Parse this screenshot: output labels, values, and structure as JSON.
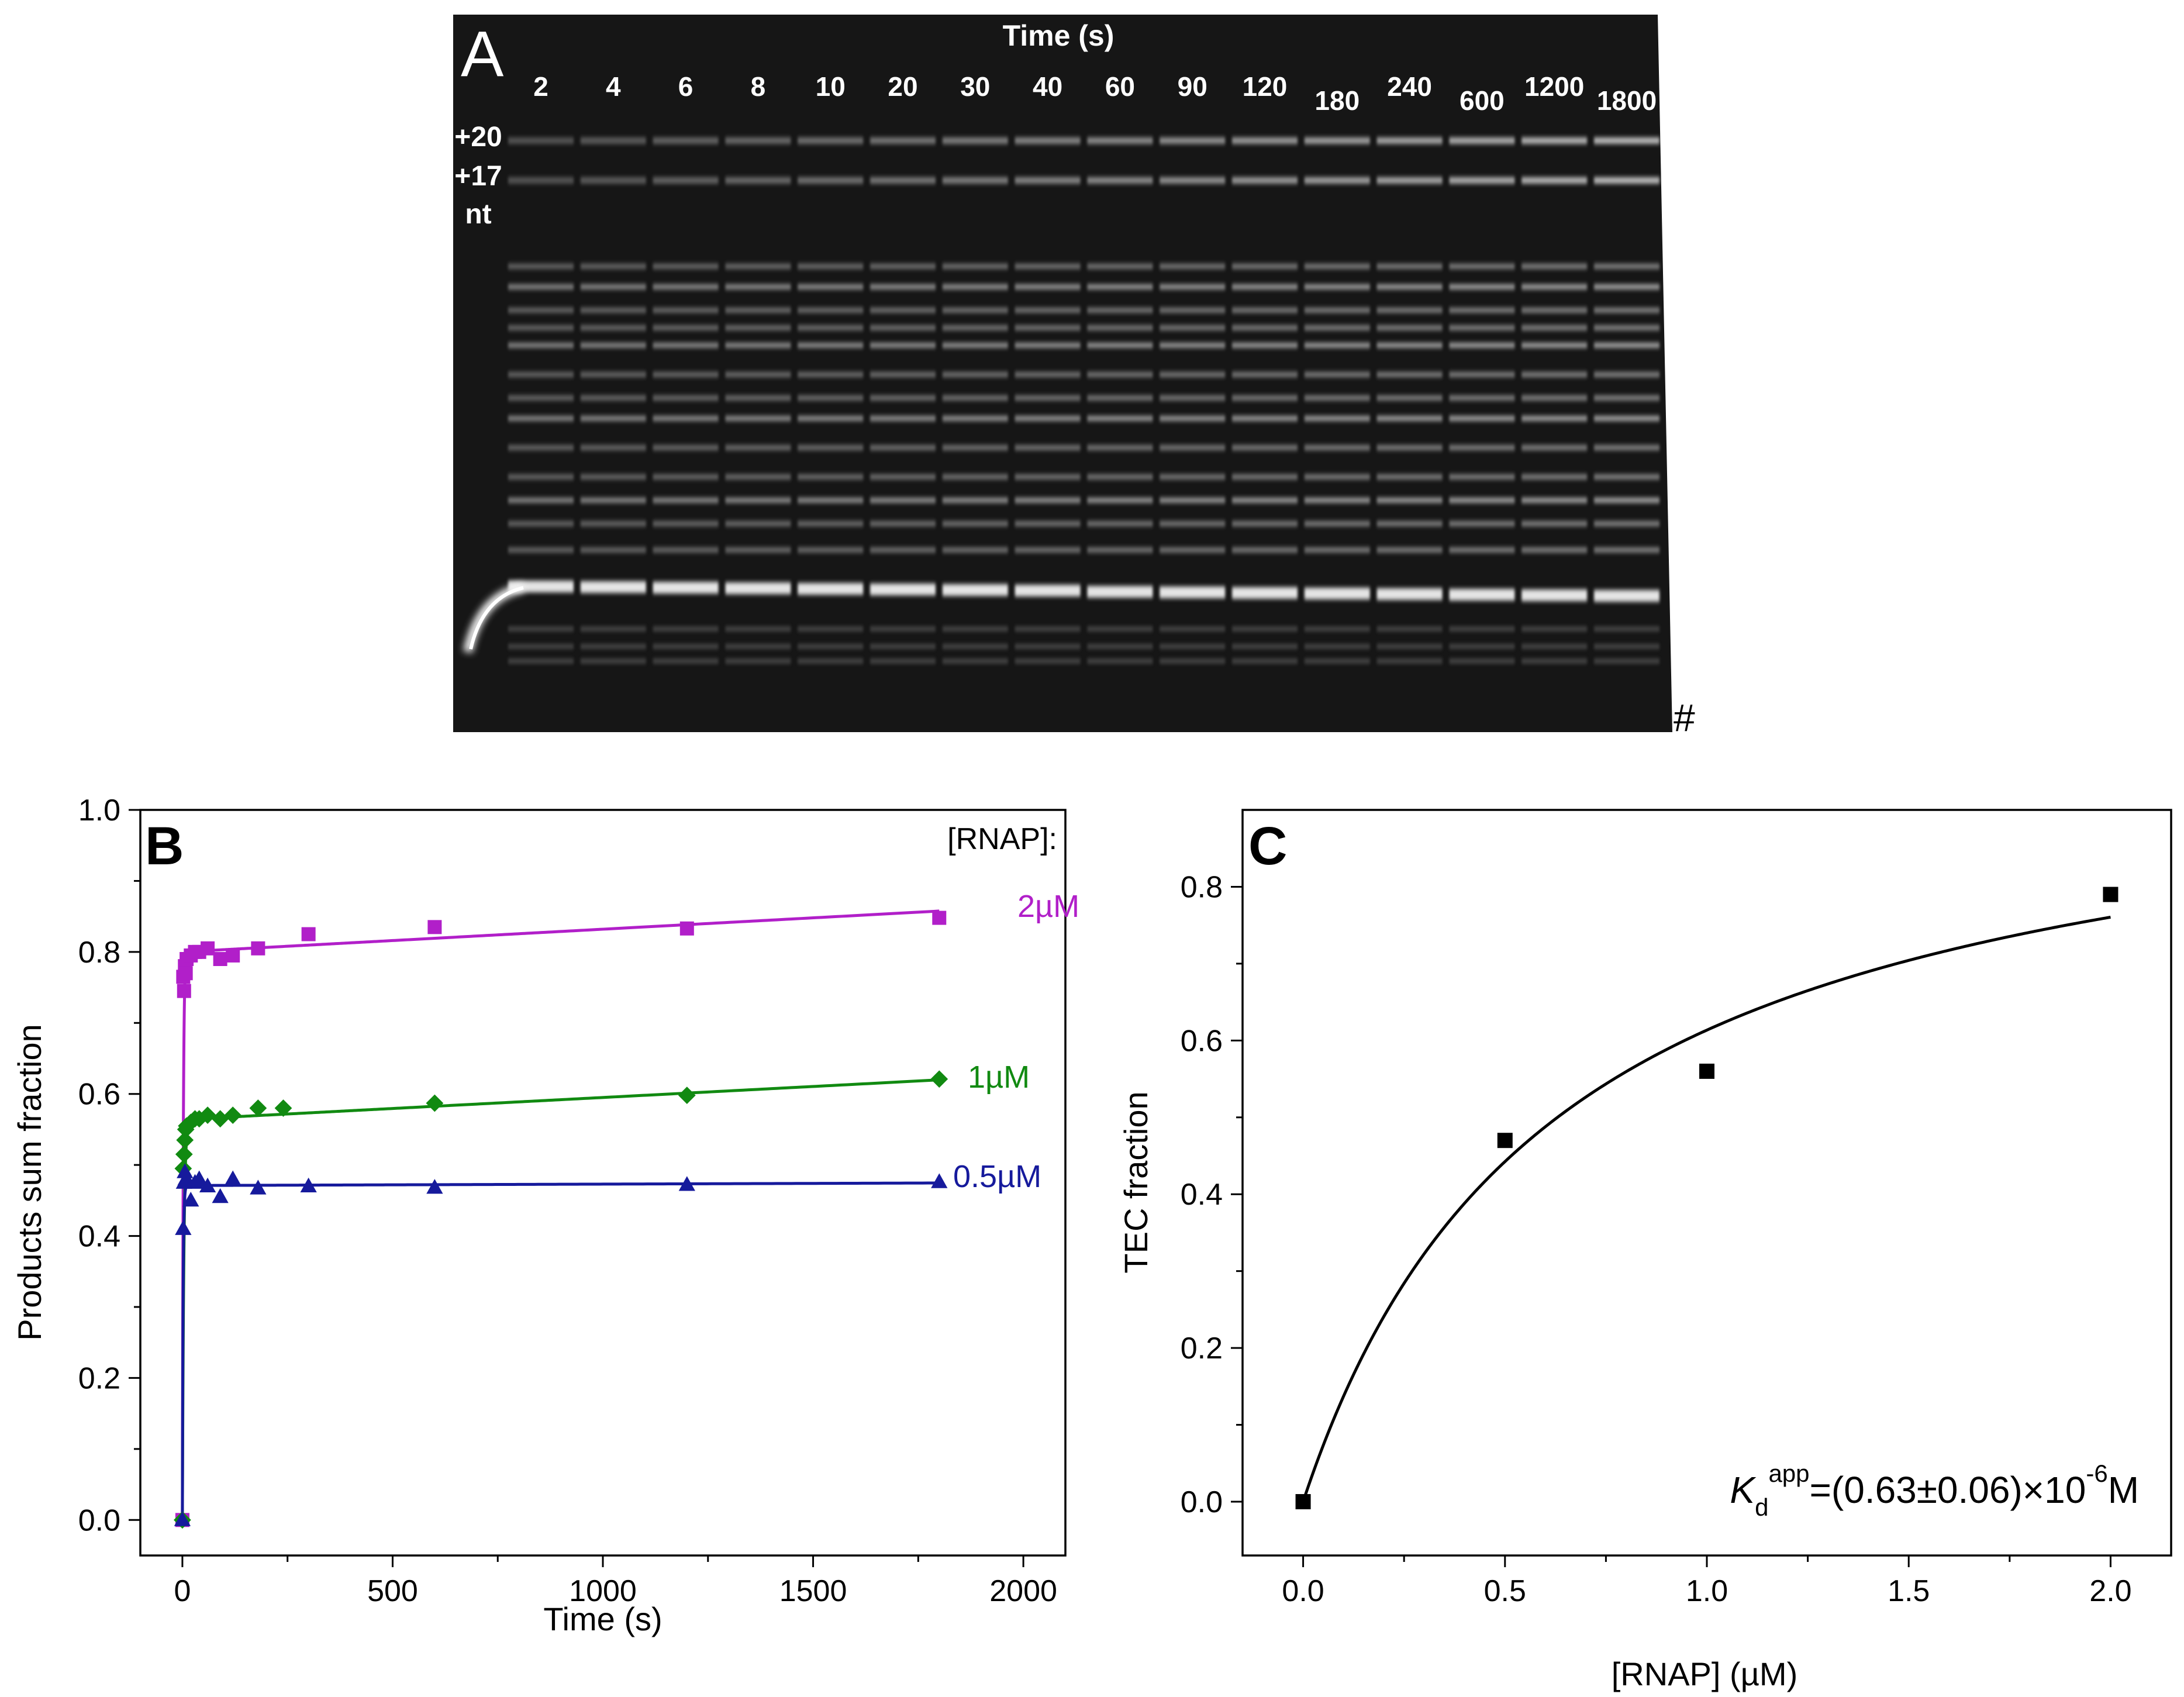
{
  "panel_a": {
    "letter": "A",
    "time_header": "Time (s)",
    "size_labels": [
      "+20",
      "+17",
      "nt"
    ],
    "lane_labels": [
      "2",
      "4",
      "6",
      "8",
      "10",
      "20",
      "30",
      "40",
      "60",
      "90",
      "120",
      "180",
      "240",
      "600",
      "1200",
      "1800"
    ],
    "hash_mark": "#"
  },
  "chart_data": [
    {
      "panel": "B",
      "type": "scatter",
      "title": "",
      "xlabel": "Time (s)",
      "ylabel": "Products sum fraction",
      "xlim": [
        -100,
        2100
      ],
      "ylim": [
        -0.05,
        1.0
      ],
      "xticks": [
        0,
        500,
        1000,
        1500,
        2000
      ],
      "yticks": [
        0.0,
        0.2,
        0.4,
        0.6,
        0.8,
        1.0
      ],
      "legend_title": "[RNAP]:",
      "series": [
        {
          "name": "2µM",
          "color": "#b11fc9",
          "marker": "square",
          "x": [
            0,
            2,
            4,
            6,
            8,
            10,
            20,
            30,
            40,
            60,
            90,
            120,
            180,
            300,
            600,
            1200,
            1800
          ],
          "y": [
            0.0,
            0.765,
            0.745,
            0.78,
            0.77,
            0.79,
            0.795,
            0.8,
            0.8,
            0.805,
            0.79,
            0.795,
            0.805,
            0.825,
            0.835,
            0.833,
            0.848
          ],
          "fit": {
            "kind": "rise_linear",
            "a": 0.8,
            "k": 0.5,
            "m": 3.2e-05
          }
        },
        {
          "name": "1µM",
          "color": "#118a11",
          "marker": "diamond",
          "x": [
            0,
            2,
            4,
            6,
            8,
            10,
            20,
            30,
            40,
            60,
            90,
            120,
            180,
            240,
            600,
            1200,
            1800
          ],
          "y": [
            0.0,
            0.495,
            0.515,
            0.535,
            0.55,
            0.555,
            0.56,
            0.565,
            0.565,
            0.57,
            0.565,
            0.57,
            0.58,
            0.58,
            0.587,
            0.598,
            0.621
          ],
          "fit": {
            "kind": "rise_linear",
            "a": 0.564,
            "k": 0.3,
            "m": 3.1e-05
          }
        },
        {
          "name": "0.5µM",
          "color": "#161a9c",
          "marker": "triangle",
          "x": [
            0,
            2,
            4,
            6,
            8,
            10,
            20,
            30,
            40,
            60,
            90,
            120,
            180,
            300,
            600,
            1200,
            1800
          ],
          "y": [
            0.0,
            0.41,
            0.475,
            0.49,
            0.48,
            0.48,
            0.45,
            0.475,
            0.48,
            0.47,
            0.455,
            0.48,
            0.467,
            0.47,
            0.468,
            0.472,
            0.476
          ],
          "fit": {
            "kind": "rise_linear",
            "a": 0.471,
            "k": 0.6,
            "m": 2e-06
          }
        }
      ]
    },
    {
      "panel": "C",
      "type": "scatter",
      "title": "",
      "xlabel": "[RNAP] (µM)",
      "ylabel": "TEC fraction",
      "xlim": [
        -0.15,
        2.15
      ],
      "ylim": [
        -0.07,
        0.9
      ],
      "xticks": [
        0.0,
        0.5,
        1.0,
        1.5,
        2.0
      ],
      "yticks": [
        0.0,
        0.2,
        0.4,
        0.6,
        0.8
      ],
      "series": [
        {
          "name": "TEC fraction",
          "color": "#000000",
          "marker": "square",
          "x": [
            0.0,
            0.5,
            1.0,
            2.0
          ],
          "y": [
            0.0,
            0.47,
            0.56,
            0.79
          ],
          "fit": {
            "kind": "hyperbola",
            "bmax": 1.0,
            "kd": 0.63
          }
        }
      ],
      "annotation": {
        "k": "K",
        "sub": "d",
        "sup1": "app",
        "mid": "=(0.63±0.06)×10",
        "sup2": "-6",
        "end": "M"
      }
    }
  ]
}
